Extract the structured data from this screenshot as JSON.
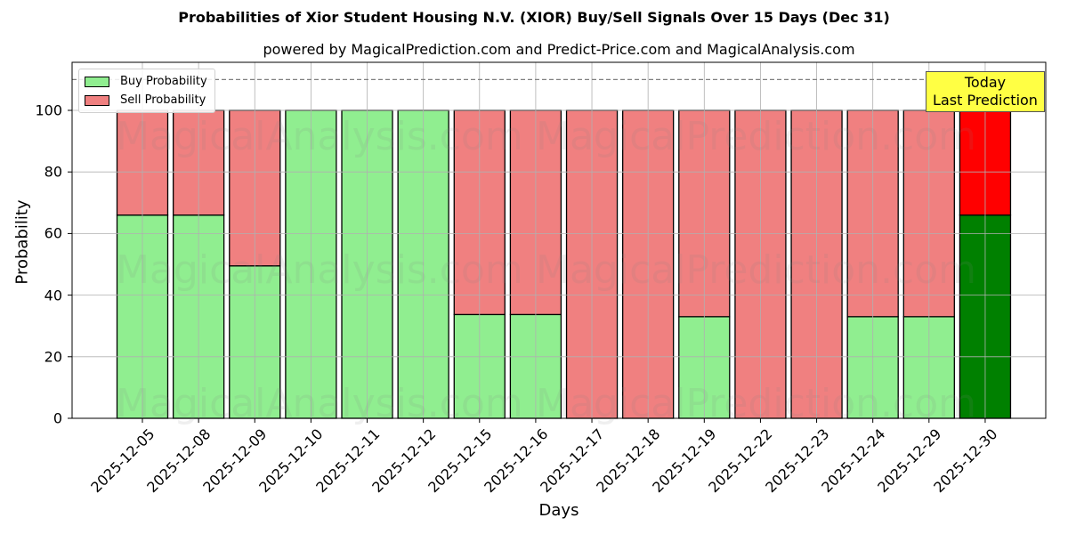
{
  "chart_data": {
    "type": "bar",
    "stacked": true,
    "title": "Probabilities of Xior Student Housing N.V. (XIOR) Buy/Sell Signals Over 15 Days (Dec 31)",
    "subtitle": "powered by MagicalPrediction.com and Predict-Price.com and MagicalAnalysis.com",
    "xlabel": "Days",
    "ylabel": "Probability",
    "ylim": [
      0,
      115
    ],
    "yticks": [
      0,
      20,
      40,
      60,
      80,
      100
    ],
    "grid": true,
    "legend_position": "upper left",
    "reference_line": {
      "y": 110,
      "style": "dashed",
      "color": "#808080"
    },
    "categories": [
      "2025-12-05",
      "2025-12-08",
      "2025-12-09",
      "2025-12-10",
      "2025-12-11",
      "2025-12-12",
      "2025-12-15",
      "2025-12-16",
      "2025-12-17",
      "2025-12-18",
      "2025-12-19",
      "2025-12-22",
      "2025-12-23",
      "2025-12-24",
      "2025-12-29",
      "2025-12-30"
    ],
    "series": [
      {
        "name": "Buy Probability",
        "color": "#90ee90",
        "values": [
          66,
          66,
          49.5,
          100,
          100,
          100,
          33.7,
          33.7,
          0,
          0,
          33,
          0,
          0,
          33,
          33,
          66
        ]
      },
      {
        "name": "Sell Probability",
        "color": "#f08080",
        "values": [
          34,
          34,
          50.5,
          0,
          0,
          0,
          66.3,
          66.3,
          100,
          100,
          67,
          100,
          100,
          67,
          67,
          34
        ]
      }
    ],
    "highlight": {
      "index": 15,
      "buy_color": "#008000",
      "sell_color": "#ff0000",
      "annotation": "Today\nLast Prediction"
    }
  },
  "legend": {
    "buy_label": "Buy Probability",
    "sell_label": "Sell Probability"
  },
  "annotation": {
    "line1": "Today",
    "line2": "Last Prediction"
  },
  "watermarks": [
    "MagicalAnalysis.com",
    "MagicalPrediction.com"
  ]
}
